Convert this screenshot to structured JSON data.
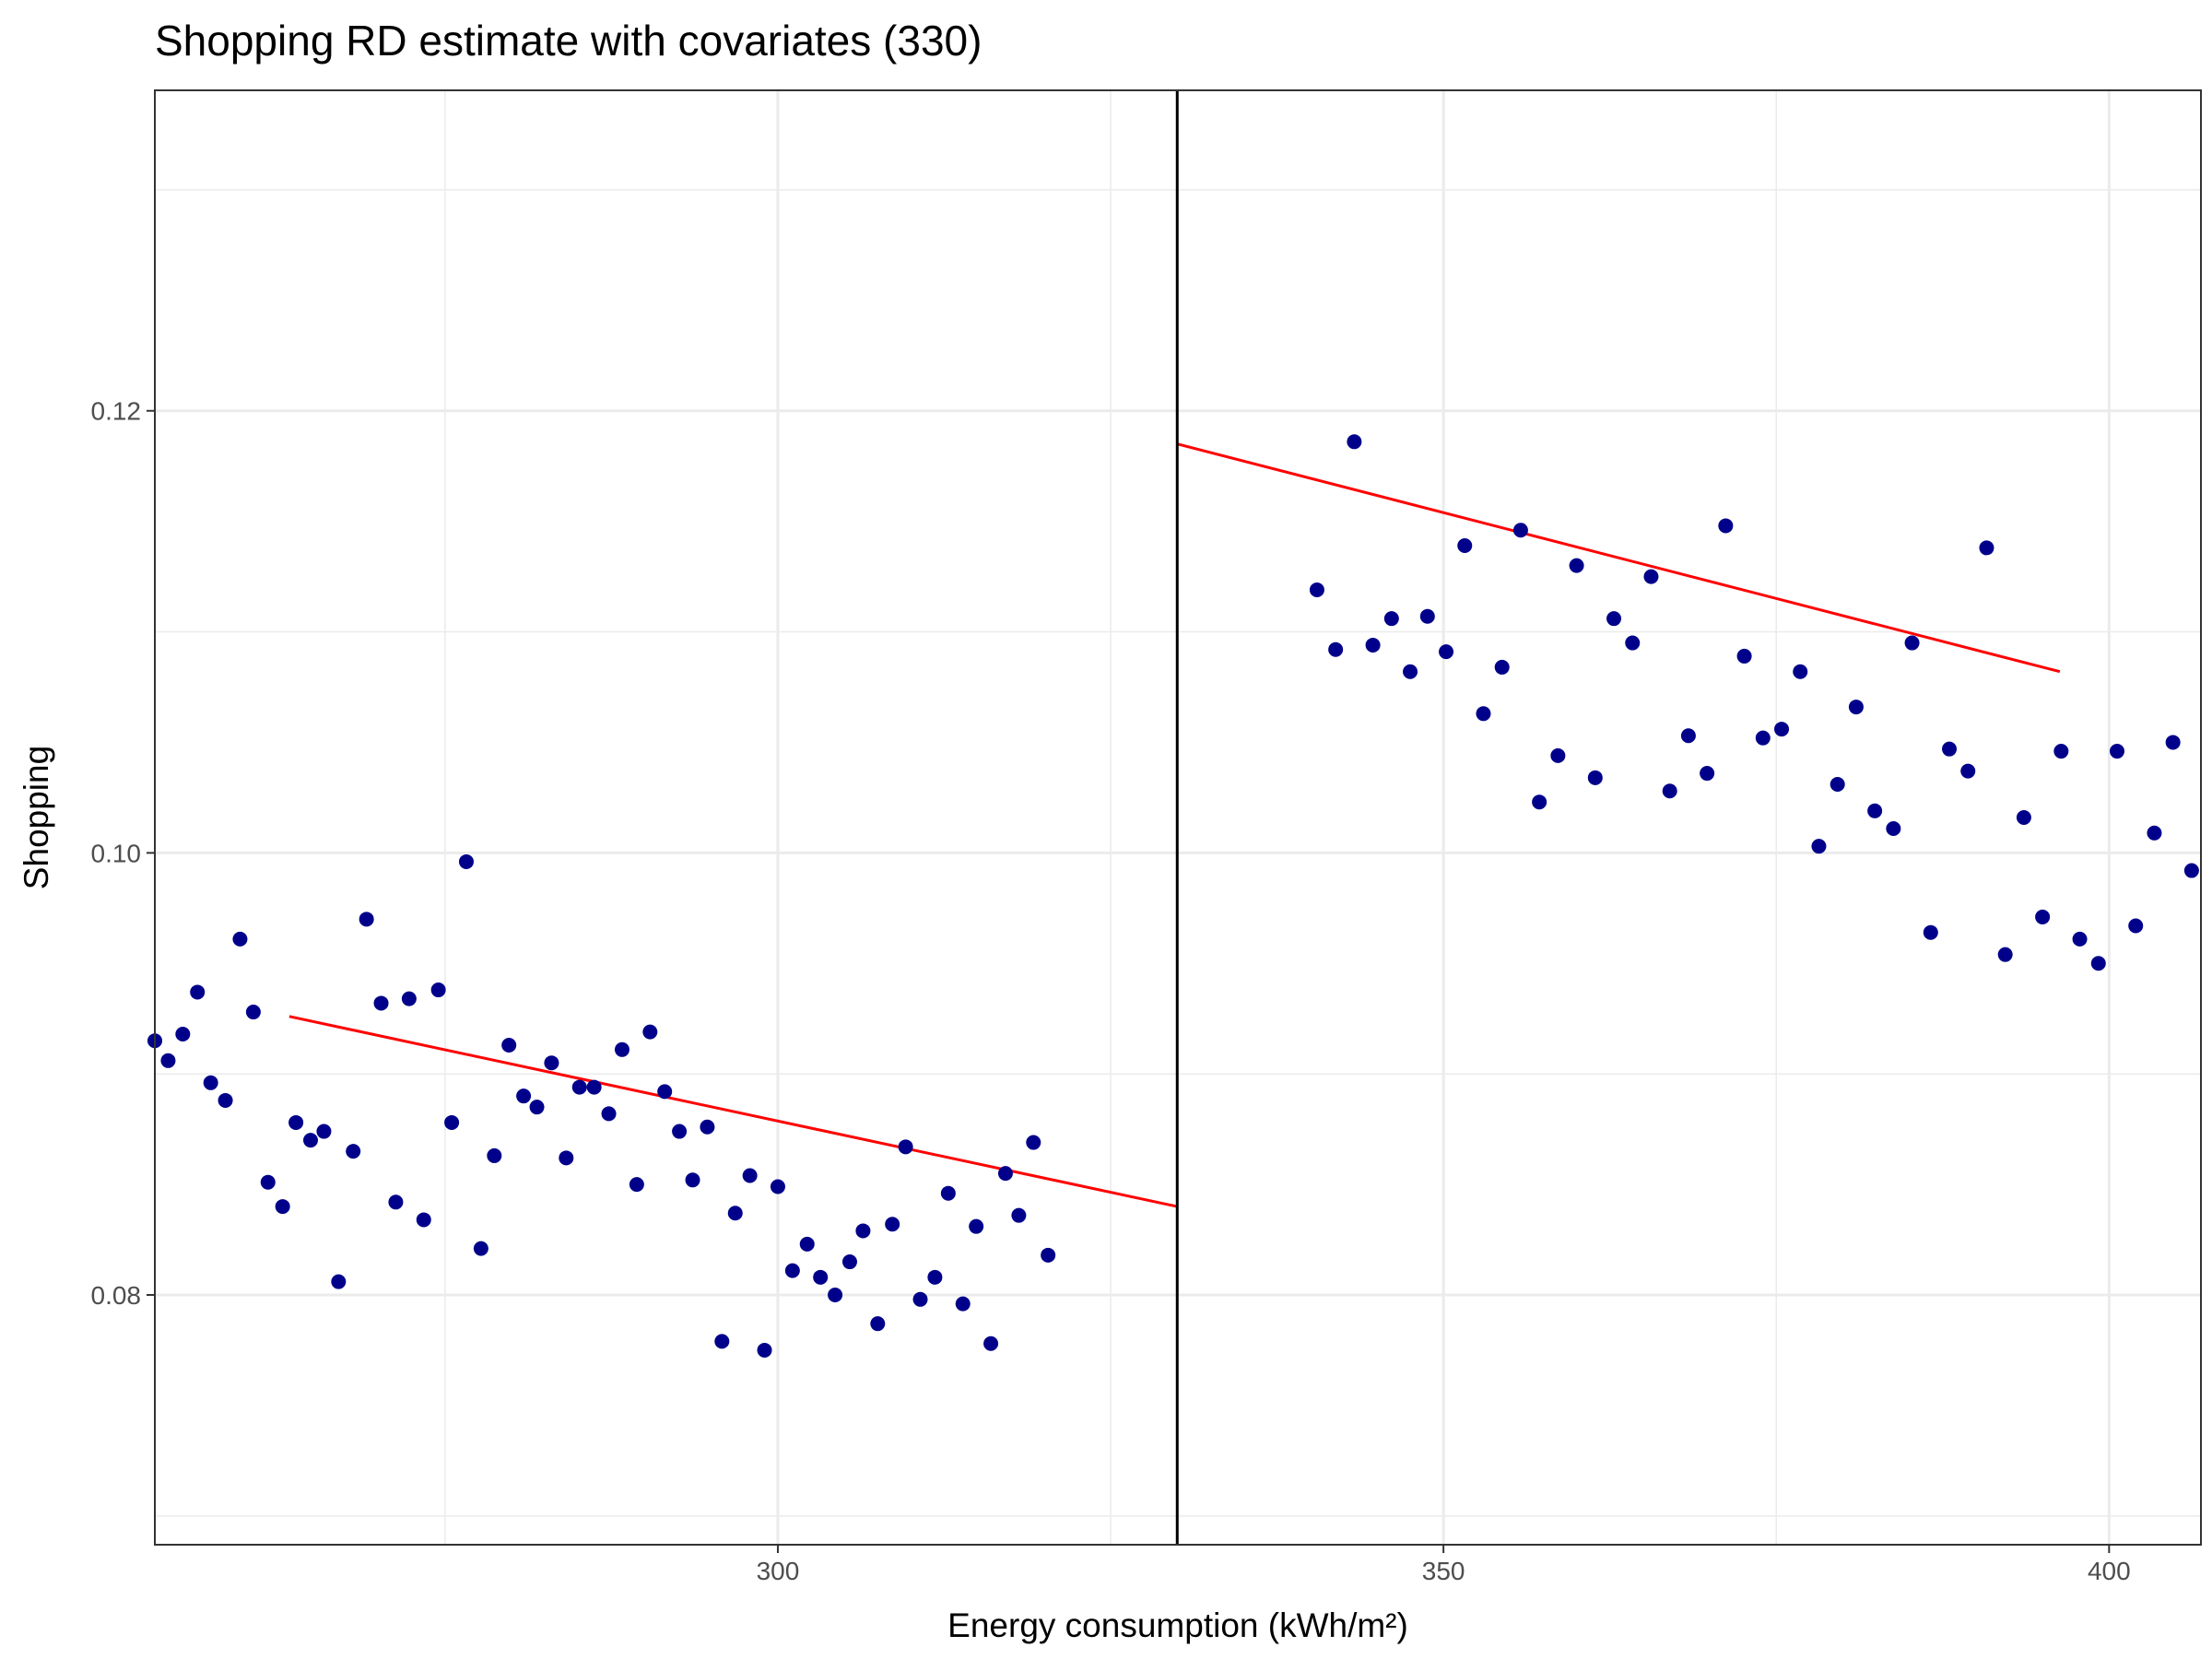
{
  "chart_data": {
    "type": "scatter",
    "title": "Shopping RD estimate with covariates (330)",
    "xlabel": "Energy consumption (kWh/m²)",
    "ylabel": "Shopping",
    "xlim": [
      253.2,
      406.9
    ],
    "ylim": [
      0.0687,
      0.1345
    ],
    "x_ticks": [
      300,
      350,
      400
    ],
    "y_ticks": [
      0.08,
      0.1,
      0.12
    ],
    "x_tick_labels": [
      "300",
      "350",
      "400"
    ],
    "y_tick_labels": [
      "0.08",
      "0.10",
      "0.12"
    ],
    "x_minor_ticks": [
      275,
      325,
      375
    ],
    "y_minor_ticks": [
      0.07,
      0.09,
      0.11,
      0.13
    ],
    "grid": true,
    "cutoff": 330,
    "colors": {
      "points": "#00008b",
      "fit": "#ff0000",
      "cutoff": "#000000",
      "grid": "#ebebeb"
    },
    "points": [
      [
        253.2,
        0.0915
      ],
      [
        254.2,
        0.0906
      ],
      [
        255.3,
        0.0918
      ],
      [
        256.4,
        0.0937
      ],
      [
        257.4,
        0.0896
      ],
      [
        258.5,
        0.0888
      ],
      [
        259.6,
        0.0961
      ],
      [
        260.6,
        0.0928
      ],
      [
        261.7,
        0.0851
      ],
      [
        262.8,
        0.084
      ],
      [
        263.8,
        0.0878
      ],
      [
        264.9,
        0.087
      ],
      [
        265.9,
        0.0874
      ],
      [
        267.0,
        0.0806
      ],
      [
        268.1,
        0.0865
      ],
      [
        269.1,
        0.097
      ],
      [
        270.2,
        0.0932
      ],
      [
        271.3,
        0.0842
      ],
      [
        272.3,
        0.0934
      ],
      [
        273.4,
        0.0834
      ],
      [
        274.5,
        0.0938
      ],
      [
        275.5,
        0.0878
      ],
      [
        276.6,
        0.0996
      ],
      [
        277.7,
        0.0821
      ],
      [
        278.7,
        0.0863
      ],
      [
        279.8,
        0.0913
      ],
      [
        280.9,
        0.089
      ],
      [
        281.9,
        0.0885
      ],
      [
        283.0,
        0.0905
      ],
      [
        284.1,
        0.0862
      ],
      [
        285.1,
        0.0894
      ],
      [
        286.2,
        0.0894
      ],
      [
        287.3,
        0.0882
      ],
      [
        288.3,
        0.0911
      ],
      [
        289.4,
        0.085
      ],
      [
        290.4,
        0.0919
      ],
      [
        291.5,
        0.0892
      ],
      [
        292.6,
        0.0874
      ],
      [
        293.6,
        0.0852
      ],
      [
        294.7,
        0.0876
      ],
      [
        295.8,
        0.0779
      ],
      [
        296.8,
        0.0837
      ],
      [
        297.9,
        0.0854
      ],
      [
        299.0,
        0.0775
      ],
      [
        300.0,
        0.0849
      ],
      [
        301.1,
        0.0811
      ],
      [
        302.2,
        0.0823
      ],
      [
        303.2,
        0.0808
      ],
      [
        304.3,
        0.08
      ],
      [
        305.4,
        0.0815
      ],
      [
        306.4,
        0.0829
      ],
      [
        307.5,
        0.0787
      ],
      [
        308.6,
        0.0832
      ],
      [
        309.6,
        0.0867
      ],
      [
        310.7,
        0.0798
      ],
      [
        311.8,
        0.0808
      ],
      [
        312.8,
        0.0846
      ],
      [
        313.9,
        0.0796
      ],
      [
        314.9,
        0.0831
      ],
      [
        316.0,
        0.0778
      ],
      [
        317.1,
        0.0855
      ],
      [
        318.1,
        0.0836
      ],
      [
        319.2,
        0.0869
      ],
      [
        320.3,
        0.0818
      ],
      [
        340.5,
        0.1119
      ],
      [
        341.9,
        0.1092
      ],
      [
        343.3,
        0.1186
      ],
      [
        344.7,
        0.1094
      ],
      [
        346.1,
        0.1106
      ],
      [
        347.5,
        0.1082
      ],
      [
        348.8,
        0.1107
      ],
      [
        350.2,
        0.1091
      ],
      [
        351.6,
        0.1139
      ],
      [
        353.0,
        0.1063
      ],
      [
        354.4,
        0.1084
      ],
      [
        355.8,
        0.1146
      ],
      [
        357.2,
        0.1023
      ],
      [
        358.6,
        0.1044
      ],
      [
        360.0,
        0.113
      ],
      [
        361.4,
        0.1034
      ],
      [
        362.8,
        0.1106
      ],
      [
        364.2,
        0.1095
      ],
      [
        365.6,
        0.1125
      ],
      [
        367.0,
        0.1028
      ],
      [
        368.4,
        0.1053
      ],
      [
        369.8,
        0.1036
      ],
      [
        371.2,
        0.1148
      ],
      [
        372.6,
        0.1089
      ],
      [
        374.0,
        0.1052
      ],
      [
        375.4,
        0.1056
      ],
      [
        376.8,
        0.1082
      ],
      [
        378.2,
        0.1003
      ],
      [
        379.6,
        0.1031
      ],
      [
        381.0,
        0.1066
      ],
      [
        382.4,
        0.1019
      ],
      [
        383.8,
        0.1011
      ],
      [
        385.2,
        0.1095
      ],
      [
        386.6,
        0.0964
      ],
      [
        388.0,
        0.1047
      ],
      [
        389.4,
        0.1037
      ],
      [
        390.8,
        0.1138
      ],
      [
        392.2,
        0.0954
      ],
      [
        393.6,
        0.1016
      ],
      [
        395.0,
        0.0971
      ],
      [
        396.4,
        0.1046
      ],
      [
        397.8,
        0.0961
      ],
      [
        399.2,
        0.095
      ],
      [
        400.6,
        0.1046
      ],
      [
        402.0,
        0.0967
      ],
      [
        403.4,
        0.1009
      ],
      [
        404.8,
        0.105
      ],
      [
        406.2,
        0.0992
      ]
    ],
    "fit_lines": [
      {
        "x": [
          263.3,
          330.0
        ],
        "y": [
          0.0926,
          0.084
        ]
      },
      {
        "x": [
          330.0,
          396.3
        ],
        "y": [
          0.1185,
          0.1082
        ]
      }
    ]
  }
}
